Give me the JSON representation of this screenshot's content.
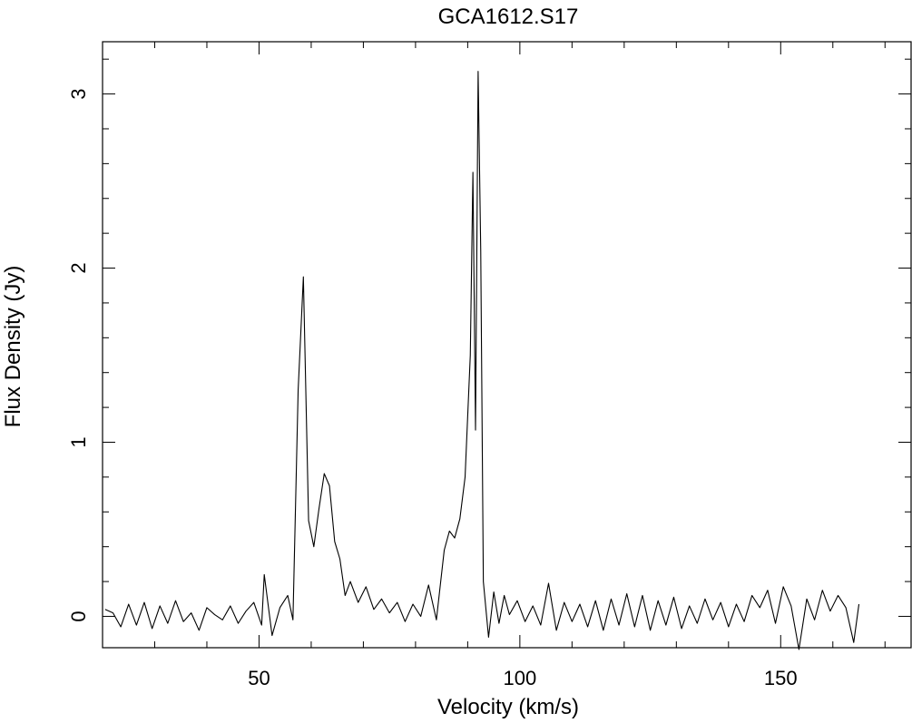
{
  "chart_data": {
    "type": "line",
    "title": "GCA1612.S17",
    "xlabel": "Velocity (km/s)",
    "ylabel": "Flux Density (Jy)",
    "xlim": [
      20,
      175
    ],
    "ylim": [
      -0.18,
      3.3
    ],
    "x_major_ticks": [
      50,
      100,
      150
    ],
    "x_tick_labels": [
      "50",
      "100",
      "150"
    ],
    "x_minor_step": 10,
    "y_major_ticks": [
      0,
      1,
      2,
      3
    ],
    "y_tick_labels": [
      "0",
      "1",
      "2",
      "3"
    ],
    "y_minor_step": 0.2,
    "grid": false,
    "line_color": "#000000",
    "series": [
      {
        "x": [
          20.5,
          22,
          23.5,
          25,
          26.5,
          28,
          29.5,
          31,
          32.5,
          34,
          35.5,
          37,
          38.5,
          40,
          41.5,
          43,
          44.5,
          46,
          47.5,
          49,
          50.5,
          51,
          52.5,
          54,
          55.5,
          56.5,
          57.5,
          58.5,
          59.5,
          60.5,
          61.5,
          62.5,
          63.5,
          64.5,
          65.5,
          66.5,
          67.5,
          69,
          70.5,
          72,
          73.5,
          75,
          76.5,
          78,
          79.5,
          81,
          82.5,
          84,
          85.5,
          86.5,
          87.5,
          88.5,
          89.5,
          90.5,
          91,
          91.5,
          92,
          92.5,
          93,
          94,
          95,
          96,
          97,
          98,
          99.5,
          101,
          102.5,
          104,
          105.5,
          107,
          108.5,
          110,
          111.5,
          113,
          114.5,
          116,
          117.5,
          119,
          120.5,
          122,
          123.5,
          125,
          126.5,
          128,
          129.5,
          131,
          132.5,
          134,
          135.5,
          137,
          138.5,
          140,
          141.5,
          143,
          144.5,
          146,
          147.5,
          149,
          150.5,
          152,
          153.5,
          155,
          156.5,
          158,
          159.5,
          161,
          162.5,
          164,
          165
        ],
        "y": [
          0.04,
          0.02,
          -0.06,
          0.07,
          -0.05,
          0.08,
          -0.07,
          0.06,
          -0.04,
          0.09,
          -0.03,
          0.02,
          -0.08,
          0.05,
          0.01,
          -0.02,
          0.06,
          -0.04,
          0.03,
          0.08,
          -0.05,
          0.24,
          -0.11,
          0.05,
          0.12,
          -0.02,
          1.3,
          1.95,
          0.55,
          0.4,
          0.62,
          0.82,
          0.75,
          0.43,
          0.33,
          0.12,
          0.2,
          0.08,
          0.17,
          0.04,
          0.1,
          0.02,
          0.08,
          -0.03,
          0.07,
          0.0,
          0.18,
          -0.02,
          0.38,
          0.49,
          0.45,
          0.56,
          0.8,
          1.5,
          2.55,
          1.07,
          3.13,
          2.1,
          0.2,
          -0.12,
          0.14,
          -0.04,
          0.12,
          0.01,
          0.09,
          -0.03,
          0.06,
          -0.05,
          0.19,
          -0.08,
          0.08,
          -0.03,
          0.07,
          -0.06,
          0.09,
          -0.08,
          0.1,
          -0.05,
          0.13,
          -0.06,
          0.12,
          -0.08,
          0.09,
          -0.05,
          0.11,
          -0.07,
          0.06,
          -0.04,
          0.1,
          -0.02,
          0.08,
          -0.06,
          0.07,
          -0.03,
          0.12,
          0.05,
          0.15,
          -0.04,
          0.17,
          0.06,
          -0.19,
          0.1,
          -0.02,
          0.15,
          0.03,
          0.12,
          0.05,
          -0.15,
          0.07
        ]
      }
    ]
  }
}
